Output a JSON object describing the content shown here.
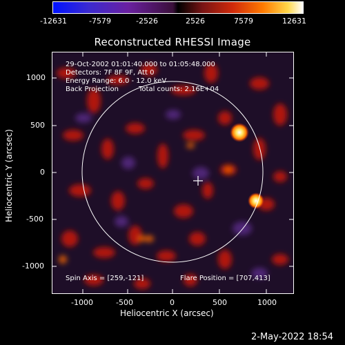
{
  "colorbar": {
    "ticks": [
      "-12631",
      "-7579",
      "-2526",
      "2526",
      "7579",
      "12631"
    ]
  },
  "title": "Reconstructed RHESSI Image",
  "annotations": {
    "line1": "29-Oct-2002 01:01:40.000 to 01:05:48.000",
    "line2": "Detectors: 7F 8F 9F, Att 0",
    "line3": "Energy Range: 6.0 - 12.0 keV",
    "line4_left": "Back Projection",
    "line4_right": "Total counts: 2.16E+04",
    "spin_axis": "Spin Axis = [259,-121]",
    "flare_position": "Flare Position = [707,413]"
  },
  "axes": {
    "xlabel": "Heliocentric X (arcsec)",
    "ylabel": "Heliocentric Y (arcsec)",
    "xticks": [
      "-1000",
      "-500",
      "0",
      "500",
      "1000"
    ],
    "yticks": [
      "1000",
      "500",
      "0",
      "-500",
      "-1000"
    ]
  },
  "footer": {
    "date": "2-May-2022 18:54"
  },
  "colors": {
    "background": "#000000",
    "image_base": "#1e0e28",
    "hot": "#ffd84a",
    "red": "#c81a12"
  }
}
